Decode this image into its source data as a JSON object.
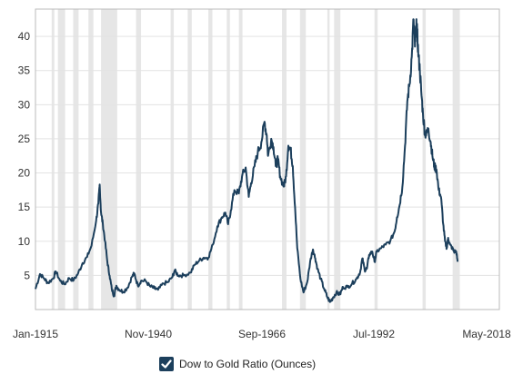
{
  "chart_data": {
    "type": "line",
    "title": "",
    "xlabel": "",
    "ylabel": "",
    "x_tick_labels": [
      "Jan-1915",
      "Nov-1940",
      "Sep-1966",
      "Jul-1992",
      "May-2018"
    ],
    "y_tick_labels": [
      "5",
      "10",
      "15",
      "20",
      "25",
      "30",
      "35",
      "40"
    ],
    "ylim": [
      0,
      44
    ],
    "xlim": [
      1915,
      2018.3
    ],
    "grid": "horizontal",
    "shaded_bands_note": "recession periods shaded in light gray",
    "recessions": [
      [
        1918.6,
        1919.2
      ],
      [
        1920.0,
        1921.6
      ],
      [
        1923.4,
        1924.6
      ],
      [
        1926.8,
        1927.9
      ],
      [
        1929.6,
        1933.2
      ],
      [
        1937.4,
        1938.5
      ],
      [
        1945.1,
        1945.8
      ],
      [
        1948.9,
        1949.8
      ],
      [
        1953.5,
        1954.4
      ],
      [
        1957.6,
        1958.3
      ],
      [
        1960.3,
        1961.1
      ],
      [
        1969.9,
        1970.9
      ],
      [
        1973.9,
        1975.2
      ],
      [
        1980.0,
        1980.5
      ],
      [
        1981.5,
        1982.9
      ],
      [
        1990.5,
        1991.2
      ],
      [
        2001.2,
        2001.9
      ],
      [
        2007.9,
        2009.5
      ]
    ],
    "series": [
      {
        "name": "Dow to Gold Ratio (Ounces)",
        "color": "#1c3f5c",
        "points": [
          [
            1915.0,
            3.0
          ],
          [
            1916.0,
            5.2
          ],
          [
            1917.0,
            4.5
          ],
          [
            1917.8,
            3.9
          ],
          [
            1919.0,
            4.6
          ],
          [
            1919.5,
            5.6
          ],
          [
            1920.5,
            4.2
          ],
          [
            1921.5,
            3.7
          ],
          [
            1922.5,
            4.6
          ],
          [
            1923.5,
            4.3
          ],
          [
            1924.5,
            5.3
          ],
          [
            1925.5,
            6.8
          ],
          [
            1926.5,
            7.7
          ],
          [
            1927.5,
            9.4
          ],
          [
            1928.5,
            13.0
          ],
          [
            1929.0,
            15.5
          ],
          [
            1929.3,
            18.3
          ],
          [
            1929.6,
            14.2
          ],
          [
            1930.0,
            12.5
          ],
          [
            1930.5,
            10.0
          ],
          [
            1931.0,
            7.0
          ],
          [
            1931.5,
            5.0
          ],
          [
            1932.0,
            3.0
          ],
          [
            1932.5,
            2.0
          ],
          [
            1933.0,
            3.5
          ],
          [
            1933.5,
            3.0
          ],
          [
            1934.5,
            2.6
          ],
          [
            1935.5,
            3.2
          ],
          [
            1936.5,
            4.8
          ],
          [
            1937.0,
            5.3
          ],
          [
            1937.8,
            3.5
          ],
          [
            1938.5,
            4.2
          ],
          [
            1939.5,
            4.2
          ],
          [
            1940.5,
            3.4
          ],
          [
            1941.5,
            3.1
          ],
          [
            1942.3,
            2.9
          ],
          [
            1943.5,
            3.8
          ],
          [
            1944.5,
            4.0
          ],
          [
            1945.5,
            4.8
          ],
          [
            1946.0,
            5.7
          ],
          [
            1946.8,
            5.0
          ],
          [
            1948.0,
            5.0
          ],
          [
            1949.5,
            5.4
          ],
          [
            1950.5,
            6.6
          ],
          [
            1951.5,
            7.2
          ],
          [
            1952.5,
            7.6
          ],
          [
            1953.5,
            7.6
          ],
          [
            1954.5,
            9.5
          ],
          [
            1955.5,
            12.2
          ],
          [
            1956.5,
            13.5
          ],
          [
            1957.3,
            14.2
          ],
          [
            1957.9,
            12.5
          ],
          [
            1958.5,
            14.5
          ],
          [
            1959.3,
            17.5
          ],
          [
            1960.3,
            17.0
          ],
          [
            1961.0,
            19.5
          ],
          [
            1961.8,
            20.8
          ],
          [
            1962.5,
            16.5
          ],
          [
            1963.0,
            18.5
          ],
          [
            1963.8,
            21.0
          ],
          [
            1964.5,
            23.0
          ],
          [
            1965.3,
            24.5
          ],
          [
            1966.0,
            27.5
          ],
          [
            1966.5,
            25.5
          ],
          [
            1966.8,
            22.5
          ],
          [
            1967.5,
            25.0
          ],
          [
            1968.0,
            23.8
          ],
          [
            1968.5,
            21.0
          ],
          [
            1969.0,
            22.0
          ],
          [
            1969.5,
            19.5
          ],
          [
            1970.3,
            18.0
          ],
          [
            1970.8,
            19.5
          ],
          [
            1971.3,
            24.0
          ],
          [
            1971.8,
            23.5
          ],
          [
            1972.3,
            21.0
          ],
          [
            1972.8,
            15.0
          ],
          [
            1973.3,
            9.0
          ],
          [
            1974.0,
            4.5
          ],
          [
            1974.7,
            2.5
          ],
          [
            1975.5,
            4.0
          ],
          [
            1976.3,
            7.5
          ],
          [
            1976.8,
            8.8
          ],
          [
            1977.3,
            7.5
          ],
          [
            1977.8,
            6.0
          ],
          [
            1978.5,
            4.5
          ],
          [
            1979.3,
            3.0
          ],
          [
            1980.0,
            1.8
          ],
          [
            1980.6,
            1.1
          ],
          [
            1981.3,
            1.8
          ],
          [
            1982.0,
            2.5
          ],
          [
            1982.8,
            2.2
          ],
          [
            1983.5,
            3.3
          ],
          [
            1984.5,
            3.3
          ],
          [
            1985.5,
            3.8
          ],
          [
            1986.5,
            4.5
          ],
          [
            1987.3,
            5.5
          ],
          [
            1987.8,
            7.5
          ],
          [
            1988.3,
            5.8
          ],
          [
            1988.8,
            6.0
          ],
          [
            1989.3,
            8.0
          ],
          [
            1990.0,
            8.5
          ],
          [
            1990.5,
            7.0
          ],
          [
            1991.0,
            8.5
          ],
          [
            1992.0,
            9.0
          ],
          [
            1993.0,
            9.5
          ],
          [
            1994.0,
            10.0
          ],
          [
            1995.0,
            11.5
          ],
          [
            1995.5,
            13.5
          ],
          [
            1996.0,
            15.0
          ],
          [
            1996.7,
            18.0
          ],
          [
            1997.3,
            24.0
          ],
          [
            1997.8,
            30.5
          ],
          [
            1998.3,
            33.0
          ],
          [
            1998.8,
            37.0
          ],
          [
            1999.2,
            42.5
          ],
          [
            1999.5,
            38.5
          ],
          [
            1999.8,
            41.5
          ],
          [
            2000.0,
            40.5
          ],
          [
            2000.3,
            37.0
          ],
          [
            2000.6,
            35.0
          ],
          [
            2000.9,
            32.0
          ],
          [
            2001.3,
            28.5
          ],
          [
            2001.7,
            26.0
          ],
          [
            2002.0,
            25.5
          ],
          [
            2002.5,
            26.5
          ],
          [
            2003.0,
            24.5
          ],
          [
            2003.4,
            22.5
          ],
          [
            2003.8,
            21.0
          ],
          [
            2004.3,
            20.5
          ],
          [
            2004.8,
            17.5
          ],
          [
            2005.3,
            16.5
          ],
          [
            2005.8,
            12.5
          ],
          [
            2006.2,
            10.0
          ],
          [
            2006.6,
            9.0
          ],
          [
            2006.9,
            10.5
          ],
          [
            2007.3,
            9.5
          ],
          [
            2007.8,
            9.0
          ],
          [
            2008.2,
            8.5
          ],
          [
            2008.7,
            8.5
          ],
          [
            2009.0,
            7.0
          ]
        ]
      }
    ]
  },
  "legend": {
    "label": "Dow to Gold Ratio (Ounces)",
    "checked": true
  }
}
